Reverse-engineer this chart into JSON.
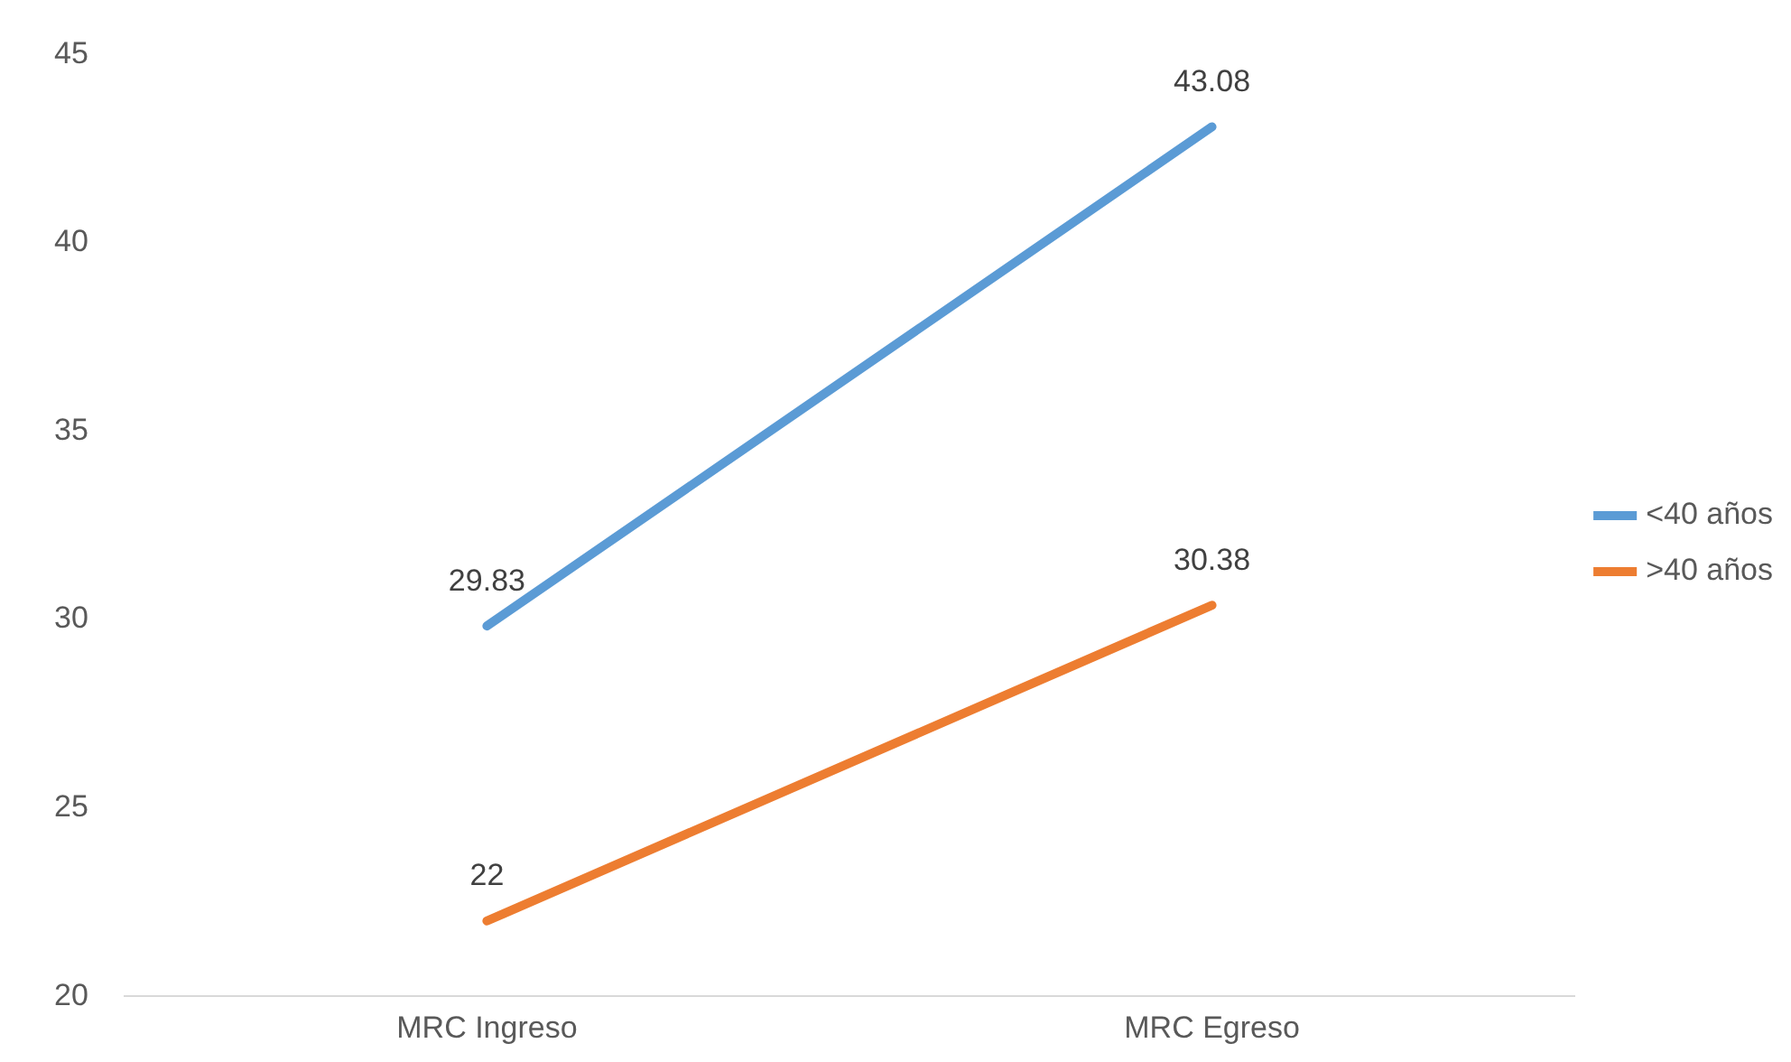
{
  "chart_data": {
    "type": "line",
    "categories": [
      "MRC Ingreso",
      "MRC Egreso"
    ],
    "series": [
      {
        "name": "<40 años",
        "color": "#5b9bd5",
        "values": [
          29.83,
          43.08
        ]
      },
      {
        "name": ">40 años",
        "color": "#ed7d31",
        "values": [
          22,
          30.38
        ]
      }
    ],
    "ylim": [
      20,
      45
    ],
    "yticks": [
      20,
      25,
      30,
      35,
      40,
      45
    ],
    "grid": false,
    "legend": "right",
    "marker": "none",
    "data_labels": true
  }
}
